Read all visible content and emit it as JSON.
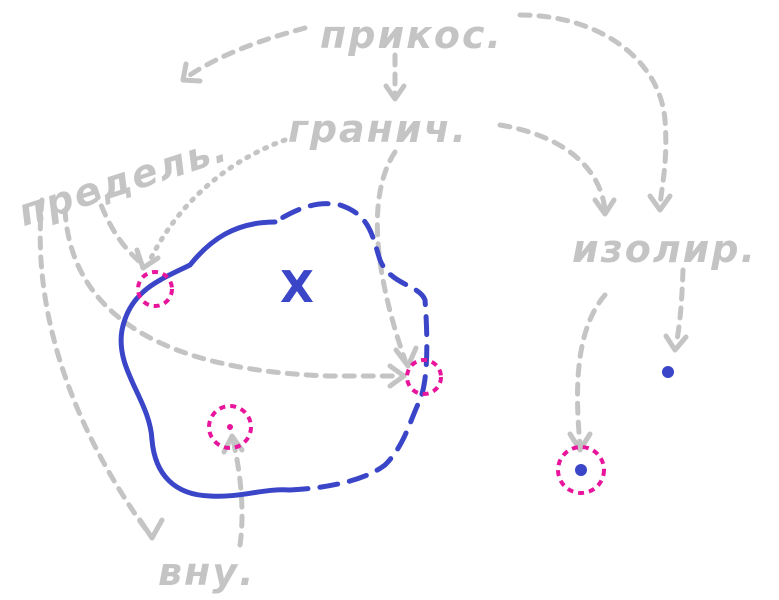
{
  "labels": {
    "closure_point": "прикос.",
    "boundary": "гранич.",
    "limit": "предель.",
    "isolated": "изолир.",
    "interior": "вну.",
    "set": "X"
  },
  "colors": {
    "annotation": "#c4c4c4",
    "set": "#3a45c8",
    "highlight": "#e8149b"
  }
}
